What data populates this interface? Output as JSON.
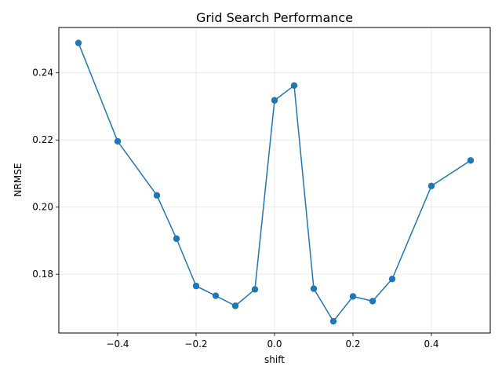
{
  "chart_data": {
    "type": "line",
    "title": "Grid Search Performance",
    "xlabel": "shift",
    "ylabel": "NRMSE",
    "xlim": [
      -0.55,
      0.55
    ],
    "ylim": [
      0.1625,
      0.2535
    ],
    "grid": true,
    "series_color": "#1f77b4",
    "x_ticks": [
      -0.4,
      -0.2,
      0.0,
      0.2,
      0.4
    ],
    "x_tick_labels": [
      "−0.4",
      "−0.2",
      "0.0",
      "0.2",
      "0.4"
    ],
    "y_ticks": [
      0.18,
      0.2,
      0.22,
      0.24
    ],
    "y_tick_labels": [
      "0.18",
      "0.20",
      "0.22",
      "0.24"
    ],
    "series": [
      {
        "x": [
          -0.5,
          -0.4,
          -0.3,
          -0.25,
          -0.2,
          -0.15,
          -0.1,
          -0.05,
          0.0,
          0.05,
          0.1,
          0.15,
          0.2,
          0.25,
          0.3,
          0.4,
          0.5
        ],
        "y": [
          0.2489,
          0.2196,
          0.2035,
          0.1906,
          0.1765,
          0.1736,
          0.1706,
          0.1755,
          0.2318,
          0.2362,
          0.1757,
          0.166,
          0.1734,
          0.172,
          0.1786,
          0.2063,
          0.2139
        ]
      }
    ]
  }
}
